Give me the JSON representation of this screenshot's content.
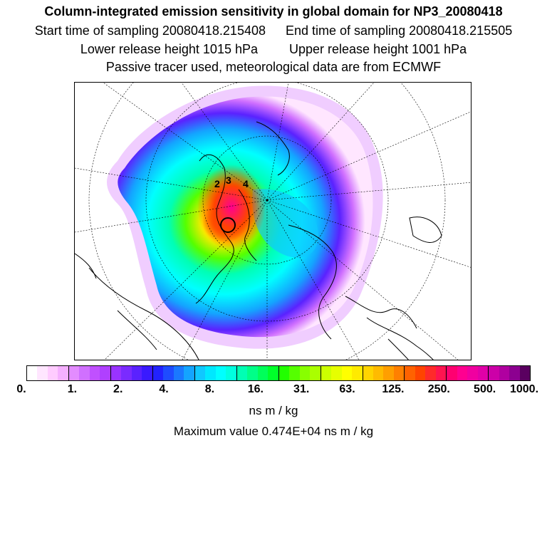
{
  "header": {
    "title": "Column-integrated emission sensitivity in global domain for NP3_20080418",
    "start_time": "Start time of sampling 20080418.215408",
    "end_time": "End time of sampling 20080418.215505",
    "lower_release": "Lower release height 1015 hPa",
    "upper_release": "Upper release height 1001 hPa",
    "tracer_note": "Passive tracer used, meteorological data are from ECMWF"
  },
  "map": {
    "description_icon": "polar-stereographic-map",
    "release_labels": [
      "2",
      "3",
      "4"
    ]
  },
  "colorbar": {
    "tick_labels": [
      "0.",
      "1.",
      "2.",
      "4.",
      "8.",
      "16.",
      "31.",
      "63.",
      "125.",
      "250.",
      "500.",
      "1000."
    ],
    "colors": [
      "#ffffff",
      "#ffe6ff",
      "#ffccff",
      "#f5b0ff",
      "#e38cff",
      "#d070ff",
      "#c050ff",
      "#b040ff",
      "#9933ff",
      "#7a2bff",
      "#5a22ff",
      "#3a1aff",
      "#2222ff",
      "#1e4cff",
      "#1a78ff",
      "#14a4ff",
      "#10c8ff",
      "#00e8ff",
      "#00ffff",
      "#00ffe0",
      "#00ffb4",
      "#00ff88",
      "#00ff5a",
      "#00ff2a",
      "#22ff00",
      "#55ff00",
      "#88ff00",
      "#aaff00",
      "#ccff00",
      "#e6ff00",
      "#ffff00",
      "#ffea00",
      "#ffd400",
      "#ffbb00",
      "#ff9f00",
      "#ff8000",
      "#ff6200",
      "#ff4400",
      "#ff2a2a",
      "#ff1450",
      "#ff0070",
      "#ff0090",
      "#f000a0",
      "#e000a8",
      "#cc00a8",
      "#b000a0",
      "#8c0090",
      "#5a0060"
    ]
  },
  "units": "ns m / kg",
  "max_value": "Maximum value  0.474E+04 ns m / kg"
}
